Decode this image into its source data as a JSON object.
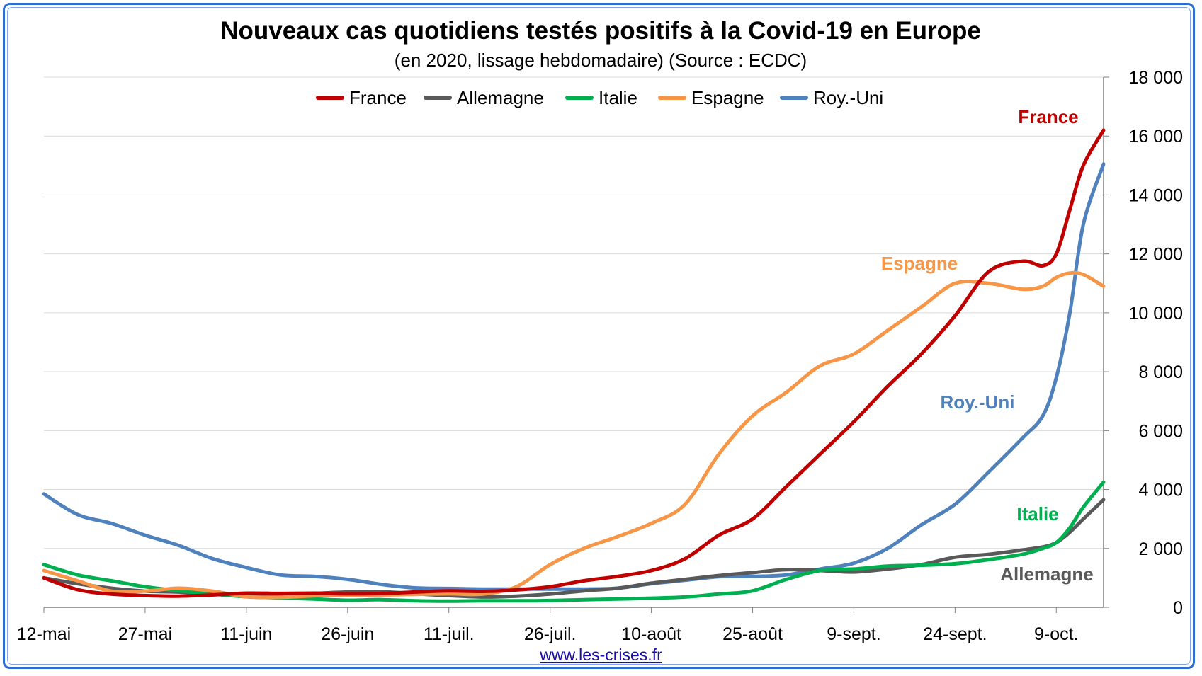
{
  "chart_data": {
    "type": "line",
    "title": "Nouveaux cas quotidiens testés positifs à la Covid-19 en Europe",
    "subtitle": "(en 2020, lissage hebdomadaire) (Source : ECDC)",
    "x_tick_labels": [
      "12-mai",
      "27-mai",
      "11-juin",
      "26-juin",
      "11-juil.",
      "26-juil.",
      "10-août",
      "25-août",
      "9-sept.",
      "24-sept.",
      "9-oct."
    ],
    "x_tick_day_index": [
      0,
      15,
      30,
      45,
      60,
      75,
      90,
      105,
      120,
      135,
      150
    ],
    "x_range_day_index": [
      0,
      157
    ],
    "ylim": [
      0,
      18000
    ],
    "y_ticks": [
      0,
      2000,
      4000,
      6000,
      8000,
      10000,
      12000,
      14000,
      16000,
      18000
    ],
    "y_tick_labels": [
      "0",
      "2 000",
      "4 000",
      "6 000",
      "8 000",
      "10 000",
      "12 000",
      "14 000",
      "16 000",
      "18 000"
    ],
    "y_axis_side": "right",
    "grid": "horizontal",
    "legend_position": "top-center",
    "x": [
      0,
      5,
      10,
      15,
      20,
      25,
      30,
      35,
      40,
      45,
      50,
      55,
      60,
      65,
      70,
      75,
      80,
      85,
      90,
      95,
      100,
      105,
      110,
      115,
      120,
      125,
      130,
      135,
      140,
      145,
      148,
      150,
      152,
      154,
      157
    ],
    "series": [
      {
        "name": "France",
        "color": "#c00000",
        "values": [
          1000,
          600,
          450,
          400,
          380,
          420,
          480,
          470,
          480,
          460,
          470,
          520,
          560,
          540,
          590,
          700,
          900,
          1050,
          1250,
          1650,
          2450,
          3000,
          4100,
          5200,
          6300,
          7500,
          8600,
          9900,
          11400,
          11750,
          11600,
          12000,
          13500,
          15000,
          16200
        ]
      },
      {
        "name": "Allemagne",
        "color": "#595959",
        "values": [
          1000,
          800,
          650,
          550,
          520,
          450,
          410,
          420,
          470,
          520,
          530,
          460,
          400,
          350,
          380,
          450,
          560,
          650,
          820,
          950,
          1080,
          1180,
          1280,
          1250,
          1200,
          1300,
          1450,
          1700,
          1800,
          1950,
          2050,
          2200,
          2550,
          3000,
          3650
        ]
      },
      {
        "name": "Italie",
        "color": "#00b050",
        "values": [
          1450,
          1100,
          900,
          700,
          560,
          450,
          360,
          320,
          280,
          240,
          260,
          220,
          210,
          220,
          220,
          230,
          260,
          280,
          310,
          350,
          450,
          560,
          950,
          1250,
          1300,
          1400,
          1430,
          1480,
          1620,
          1800,
          2000,
          2200,
          2700,
          3400,
          4250
        ]
      },
      {
        "name": "Espagne",
        "color": "#f79646",
        "values": [
          1250,
          900,
          550,
          550,
          650,
          550,
          360,
          340,
          390,
          420,
          420,
          440,
          460,
          450,
          700,
          1450,
          2000,
          2400,
          2850,
          3500,
          5200,
          6500,
          7300,
          8200,
          8600,
          9400,
          10200,
          11000,
          11000,
          10800,
          10900,
          11200,
          11350,
          11300,
          10900
        ]
      },
      {
        "name": "Roy.-Uni",
        "color": "#4f81bd",
        "values": [
          3850,
          3150,
          2850,
          2450,
          2100,
          1650,
          1350,
          1100,
          1050,
          950,
          780,
          660,
          640,
          620,
          620,
          620,
          620,
          650,
          800,
          920,
          1040,
          1050,
          1100,
          1300,
          1500,
          2000,
          2800,
          3500,
          4600,
          5750,
          6500,
          7800,
          10000,
          13000,
          15050
        ]
      }
    ],
    "annotations": [
      {
        "text": "France",
        "color": "#c00000"
      },
      {
        "text": "Espagne",
        "color": "#f79646"
      },
      {
        "text": "Roy.-Uni",
        "color": "#4f81bd"
      },
      {
        "text": "Italie",
        "color": "#00b050"
      },
      {
        "text": "Allemagne",
        "color": "#595959"
      }
    ]
  },
  "source_link": "www.les-crises.fr"
}
